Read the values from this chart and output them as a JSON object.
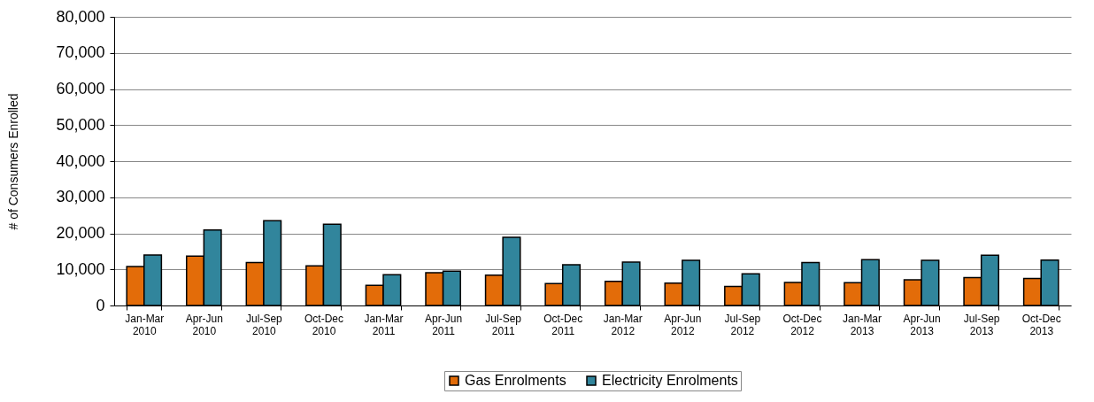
{
  "chart_data": {
    "type": "bar",
    "ylabel": "# of Consumers Enrolled",
    "categories": [
      "Jan-Mar 2010",
      "Apr-Jun 2010",
      "Jul-Sep 2010",
      "Oct-Dec 2010",
      "Jan-Mar 2011",
      "Apr-Jun 2011",
      "Jul-Sep 2011",
      "Oct-Dec 2011",
      "Jan-Mar 2012",
      "Apr-Jun 2012",
      "Jul-Sep 2012",
      "Oct-Dec 2012",
      "Jan-Mar 2013",
      "Apr-Jun 2013",
      "Jul-Sep 2013",
      "Oct-Dec 2013"
    ],
    "series": [
      {
        "name": "Gas Enrolments",
        "color": "#e36c09",
        "values": [
          10800,
          13700,
          11900,
          11000,
          5600,
          9100,
          8400,
          6100,
          6700,
          6200,
          5300,
          6400,
          6300,
          7100,
          7700,
          7500
        ]
      },
      {
        "name": "Electricity Enrolments",
        "color": "#31859c",
        "values": [
          14000,
          20900,
          23500,
          22500,
          8500,
          9500,
          18900,
          11300,
          12000,
          12500,
          8800,
          11900,
          12700,
          12500,
          13900,
          12600
        ]
      }
    ],
    "ylim": [
      0,
      80000
    ],
    "yticks": [
      0,
      {
        "value": 10000,
        "label": "10,000"
      },
      {
        "value": 20000,
        "label": "20,000"
      },
      {
        "value": 30000,
        "label": "30,000"
      },
      {
        "value": 40000,
        "label": "40,000"
      },
      {
        "value": 50000,
        "label": "50,000"
      },
      {
        "value": 60000,
        "label": "60,000"
      },
      {
        "value": 70000,
        "label": "70,000"
      },
      {
        "value": 80000,
        "label": "80,000"
      }
    ],
    "grid": "y",
    "legend": "bottom"
  }
}
